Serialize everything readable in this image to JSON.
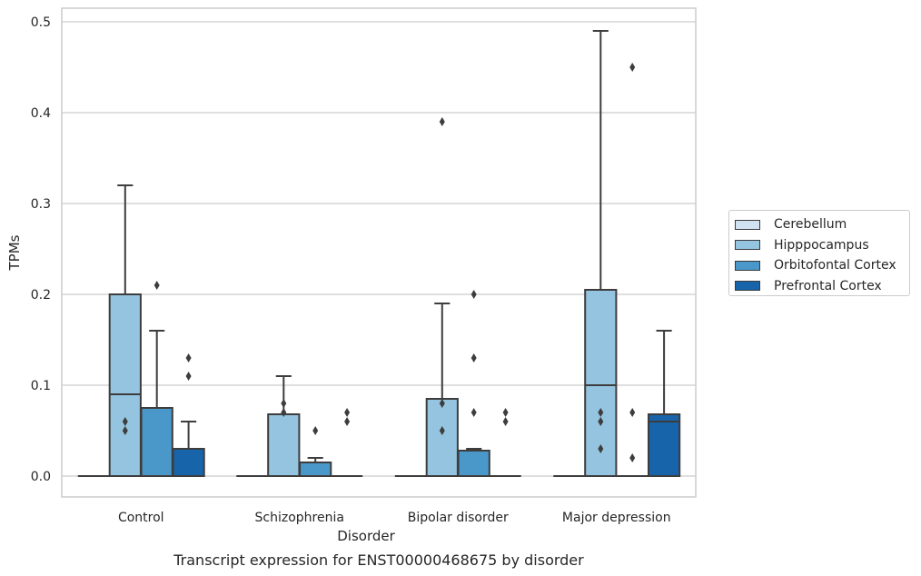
{
  "chart_data": {
    "type": "box",
    "xlabel": "Disorder",
    "ylabel": "TPMs",
    "caption": "Transcript expression for ENST00000468675 by disorder",
    "ylim": [
      -0.023,
      0.515
    ],
    "yticks": [
      0.0,
      0.1,
      0.2,
      0.3,
      0.4,
      0.5
    ],
    "ytick_labels": [
      "0.0",
      "0.1",
      "0.2",
      "0.3",
      "0.4",
      "0.5"
    ],
    "categories": [
      "Control",
      "Schizophrenia",
      "Bipolar disorder",
      "Major depression"
    ],
    "grid": true,
    "legend_position": "right",
    "series": [
      {
        "name": "Cerebellum",
        "color": "#d0e1f2",
        "boxes": [
          {
            "q1": 0,
            "median": 0,
            "q3": 0,
            "whislo": 0,
            "whishi": 0,
            "fliers": []
          },
          {
            "q1": 0,
            "median": 0,
            "q3": 0,
            "whislo": 0,
            "whishi": 0,
            "fliers": []
          },
          {
            "q1": 0,
            "median": 0,
            "q3": 0,
            "whislo": 0,
            "whishi": 0,
            "fliers": []
          },
          {
            "q1": 0,
            "median": 0,
            "q3": 0,
            "whislo": 0,
            "whishi": 0,
            "fliers": []
          }
        ]
      },
      {
        "name": "Hipppocampus",
        "color": "#94c4df",
        "boxes": [
          {
            "q1": 0,
            "median": 0.09,
            "q3": 0.2,
            "whislo": 0,
            "whishi": 0.32,
            "fliers": [
              0.05,
              0.06
            ]
          },
          {
            "q1": 0,
            "median": 0,
            "q3": 0.068,
            "whislo": 0,
            "whishi": 0.11,
            "fliers": [
              0.07,
              0.08
            ]
          },
          {
            "q1": 0,
            "median": 0,
            "q3": 0.085,
            "whislo": 0,
            "whishi": 0.19,
            "fliers": [
              0.05,
              0.08,
              0.39
            ]
          },
          {
            "q1": 0,
            "median": 0.1,
            "q3": 0.205,
            "whislo": 0,
            "whishi": 0.49,
            "fliers": [
              0.03,
              0.06,
              0.07
            ]
          }
        ]
      },
      {
        "name": "Orbitofontal Cortex",
        "color": "#4a98c9",
        "boxes": [
          {
            "q1": 0,
            "median": 0,
            "q3": 0.075,
            "whislo": 0,
            "whishi": 0.16,
            "fliers": [
              0.21
            ]
          },
          {
            "q1": 0,
            "median": 0,
            "q3": 0.015,
            "whislo": 0,
            "whishi": 0.02,
            "fliers": [
              0.05
            ]
          },
          {
            "q1": 0,
            "median": 0,
            "q3": 0.028,
            "whislo": 0,
            "whishi": 0.03,
            "fliers": [
              0.07,
              0.13,
              0.2
            ]
          },
          {
            "q1": 0,
            "median": 0,
            "q3": 0,
            "whislo": 0,
            "whishi": 0,
            "fliers": [
              0.02,
              0.07,
              0.45
            ]
          }
        ]
      },
      {
        "name": "Prefrontal Cortex",
        "color": "#1764ab",
        "boxes": [
          {
            "q1": 0,
            "median": 0,
            "q3": 0.03,
            "whislo": 0,
            "whishi": 0.06,
            "fliers": [
              0.11,
              0.13
            ]
          },
          {
            "q1": 0,
            "median": 0,
            "q3": 0,
            "whislo": 0,
            "whishi": 0,
            "fliers": [
              0.06,
              0.07
            ]
          },
          {
            "q1": 0,
            "median": 0,
            "q3": 0,
            "whislo": 0,
            "whishi": 0,
            "fliers": [
              0.06,
              0.07
            ]
          },
          {
            "q1": 0,
            "median": 0.06,
            "q3": 0.068,
            "whislo": 0,
            "whishi": 0.16,
            "fliers": []
          }
        ]
      }
    ]
  }
}
